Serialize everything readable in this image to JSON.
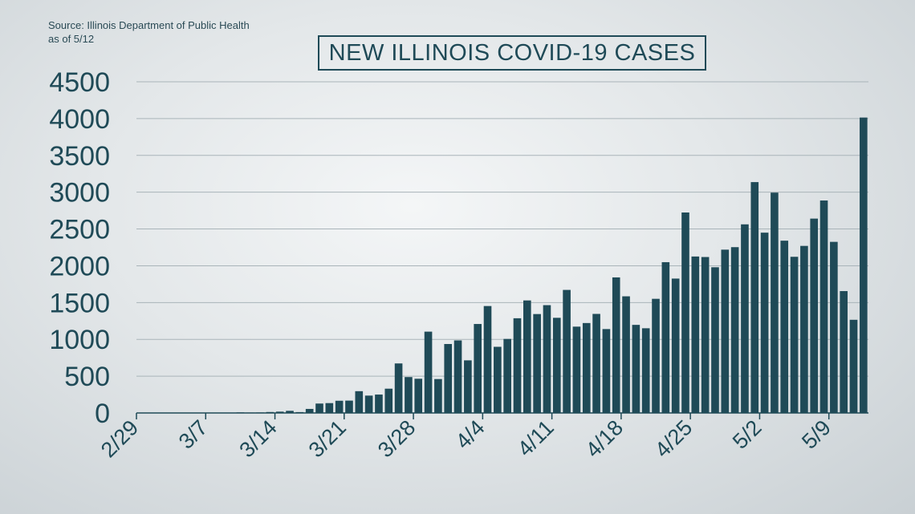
{
  "source": {
    "line1": "Source: Illinois Department of Public Health",
    "line2": "as of 5/12"
  },
  "colors": {
    "bar": "#1f4a57",
    "grid": "#a9b4b9",
    "text": "#1f4a57"
  },
  "chart_data": {
    "type": "bar",
    "title": "NEW ILLINOIS COVID-19 CASES",
    "xlabel": "",
    "ylabel": "",
    "ylim": [
      0,
      4500
    ],
    "yticks": [
      0,
      500,
      1000,
      1500,
      2000,
      2500,
      3000,
      3500,
      4000,
      4500
    ],
    "xtick_labels": [
      "2/29",
      "3/7",
      "3/14",
      "3/21",
      "3/28",
      "4/4",
      "4/11",
      "4/18",
      "4/25",
      "5/2",
      "5/9"
    ],
    "grid": true,
    "categories": [
      "2/29",
      "3/1",
      "3/2",
      "3/3",
      "3/4",
      "3/5",
      "3/6",
      "3/7",
      "3/8",
      "3/9",
      "3/10",
      "3/11",
      "3/12",
      "3/13",
      "3/14",
      "3/15",
      "3/16",
      "3/17",
      "3/18",
      "3/19",
      "3/20",
      "3/21",
      "3/22",
      "3/23",
      "3/24",
      "3/25",
      "3/26",
      "3/27",
      "3/28",
      "3/29",
      "3/30",
      "3/31",
      "4/1",
      "4/2",
      "4/3",
      "4/4",
      "4/5",
      "4/6",
      "4/7",
      "4/8",
      "4/9",
      "4/10",
      "4/11",
      "4/12",
      "4/13",
      "4/14",
      "4/15",
      "4/16",
      "4/17",
      "4/18",
      "4/19",
      "4/20",
      "4/21",
      "4/22",
      "4/23",
      "4/24",
      "4/25",
      "4/26",
      "4/27",
      "4/28",
      "4/29",
      "4/30",
      "5/1",
      "5/2",
      "5/3",
      "5/4",
      "5/5",
      "5/6",
      "5/7",
      "5/8",
      "5/9",
      "5/10",
      "5/11",
      "5/12"
    ],
    "values": [
      0,
      0,
      0,
      0,
      0,
      1,
      1,
      0,
      4,
      4,
      8,
      6,
      7,
      13,
      18,
      29,
      12,
      55,
      128,
      134,
      166,
      168,
      296,
      236,
      250,
      330,
      673,
      488,
      465,
      1105,
      461,
      937,
      986,
      715,
      1209,
      1453,
      899,
      1006,
      1287,
      1529,
      1344,
      1465,
      1293,
      1672,
      1173,
      1222,
      1346,
      1140,
      1842,
      1585,
      1197,
      1151,
      1551,
      2049,
      1826,
      2724,
      2126,
      2119,
      1980,
      2219,
      2253,
      2563,
      3137,
      2450,
      2994,
      2341,
      2122,
      2270,
      2641,
      2887,
      2325,
      1656,
      1266,
      4014
    ]
  }
}
